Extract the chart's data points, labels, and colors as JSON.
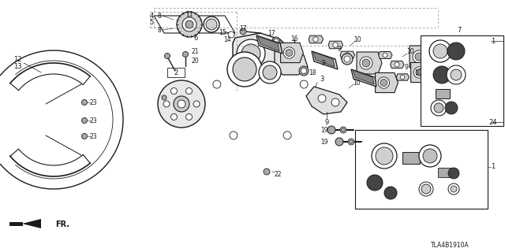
{
  "background_color": "#ffffff",
  "diagram_code": "TLA4B1910A",
  "fr_label": "FR.",
  "line_color": "#1a1a1a",
  "dashed_color": "#888888",
  "gray_fill": "#aaaaaa",
  "dark_fill": "#444444",
  "mid_fill": "#777777"
}
